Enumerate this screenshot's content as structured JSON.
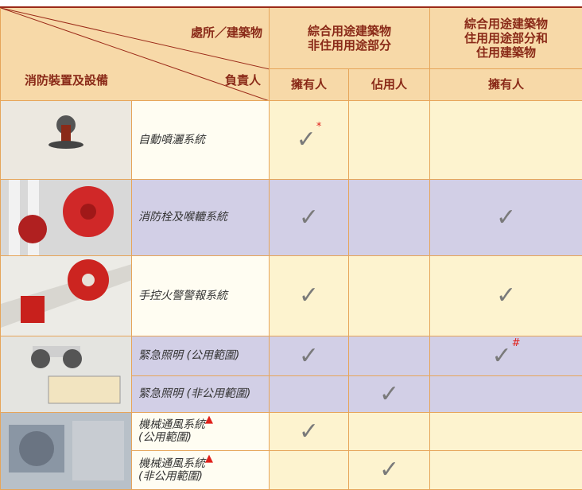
{
  "header": {
    "location_label": "處所／建築物",
    "person_label": "負責人",
    "facility_label": "消防裝置及設備",
    "group1_lines": [
      "綜合用途建築物",
      "非住用用途部分"
    ],
    "group2_lines": [
      "綜合用途建築物",
      "住用用途部分和",
      "住用建築物"
    ],
    "owner": "擁有人",
    "occupier": "佔用人",
    "owner2": "擁有人"
  },
  "rows": [
    {
      "facility_lines": [
        "自動噴灑系統"
      ],
      "owner": "✓",
      "owner_note": "*",
      "occupier": null,
      "residential_owner": null
    },
    {
      "facility_lines": [
        "消防栓及喉轆系統"
      ],
      "owner": "✓",
      "occupier": null,
      "residential_owner": "✓"
    },
    {
      "facility_lines": [
        "手控火警警報系統"
      ],
      "owner": "✓",
      "occupier": null,
      "residential_owner": "✓"
    },
    {
      "facility_lines": [
        "緊急照明 (公用範圍)"
      ],
      "owner": "✓",
      "occupier": null,
      "residential_owner": "✓",
      "residential_note": "#"
    },
    {
      "facility_lines": [
        "緊急照明 (非公用範圍)"
      ],
      "owner": null,
      "occupier": "✓",
      "residential_owner": null
    },
    {
      "facility_lines": [
        "機械通風系統",
        "(公用範圍)"
      ],
      "facility_note": "▲",
      "owner": "✓",
      "occupier": null,
      "residential_owner": null
    },
    {
      "facility_lines": [
        "機械通風系統",
        "(非公用範圍)"
      ],
      "facility_note": "▲",
      "owner": null,
      "occupier": "✓",
      "residential_owner": null
    }
  ]
}
